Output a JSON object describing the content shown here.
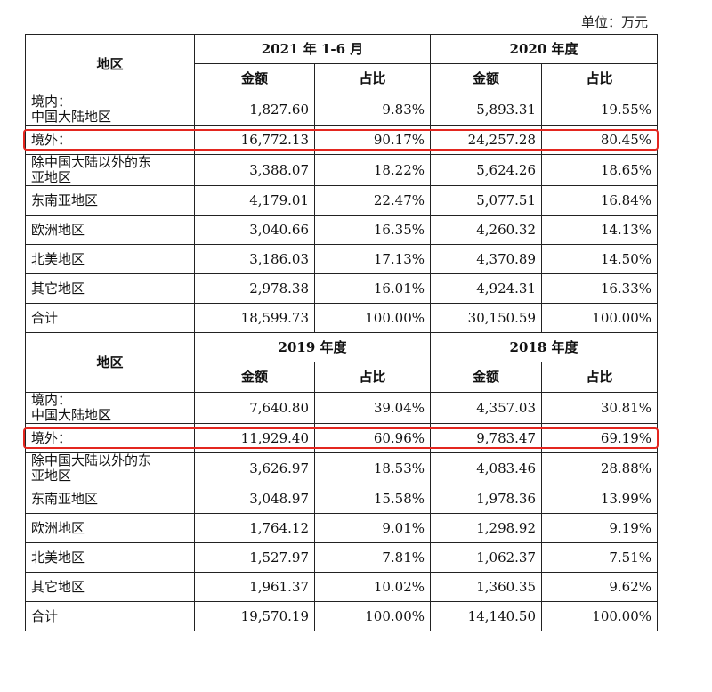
{
  "unit_label": "单位：万元",
  "region_header": "地区",
  "amount_label": "金额",
  "share_label": "占比",
  "sections": [
    {
      "periods": [
        "2021 年 1-6 月",
        "2020 年度"
      ],
      "rows": [
        {
          "region": "境内：\n中国大陆地区",
          "a1": "1,827.60",
          "s1": "9.83%",
          "a2": "5,893.31",
          "s2": "19.55%"
        },
        {
          "region": "境外：",
          "a1": "16,772.13",
          "s1": "90.17%",
          "a2": "24,257.28",
          "s2": "80.45%",
          "highlight": true
        },
        {
          "region": "除中国大陆以外的东\n亚地区",
          "a1": "3,388.07",
          "s1": "18.22%",
          "a2": "5,624.26",
          "s2": "18.65%"
        },
        {
          "region": "东南亚地区",
          "a1": "4,179.01",
          "s1": "22.47%",
          "a2": "5,077.51",
          "s2": "16.84%"
        },
        {
          "region": "欧洲地区",
          "a1": "3,040.66",
          "s1": "16.35%",
          "a2": "4,260.32",
          "s2": "14.13%"
        },
        {
          "region": "北美地区",
          "a1": "3,186.03",
          "s1": "17.13%",
          "a2": "4,370.89",
          "s2": "14.50%"
        },
        {
          "region": "其它地区",
          "a1": "2,978.38",
          "s1": "16.01%",
          "a2": "4,924.31",
          "s2": "16.33%"
        },
        {
          "region": "合计",
          "a1": "18,599.73",
          "s1": "100.00%",
          "a2": "30,150.59",
          "s2": "100.00%",
          "total": true
        }
      ]
    },
    {
      "periods": [
        "2019 年度",
        "2018 年度"
      ],
      "rows": [
        {
          "region": "境内：\n中国大陆地区",
          "a1": "7,640.80",
          "s1": "39.04%",
          "a2": "4,357.03",
          "s2": "30.81%"
        },
        {
          "region": "境外：",
          "a1": "11,929.40",
          "s1": "60.96%",
          "a2": "9,783.47",
          "s2": "69.19%",
          "highlight": true
        },
        {
          "region": "除中国大陆以外的东\n亚地区",
          "a1": "3,626.97",
          "s1": "18.53%",
          "a2": "4,083.46",
          "s2": "28.88%"
        },
        {
          "region": "东南亚地区",
          "a1": "3,048.97",
          "s1": "15.58%",
          "a2": "1,978.36",
          "s2": "13.99%"
        },
        {
          "region": "欧洲地区",
          "a1": "1,764.12",
          "s1": "9.01%",
          "a2": "1,298.92",
          "s2": "9.19%"
        },
        {
          "region": "北美地区",
          "a1": "1,527.97",
          "s1": "7.81%",
          "a2": "1,062.37",
          "s2": "7.51%"
        },
        {
          "region": "其它地区",
          "a1": "1,961.37",
          "s1": "10.02%",
          "a2": "1,360.35",
          "s2": "9.62%"
        },
        {
          "region": "合计",
          "a1": "19,570.19",
          "s1": "100.00%",
          "a2": "14,140.50",
          "s2": "100.00%",
          "total": true
        }
      ]
    }
  ],
  "colors": {
    "highlight_border": "#e3261f",
    "text": "#111111"
  }
}
